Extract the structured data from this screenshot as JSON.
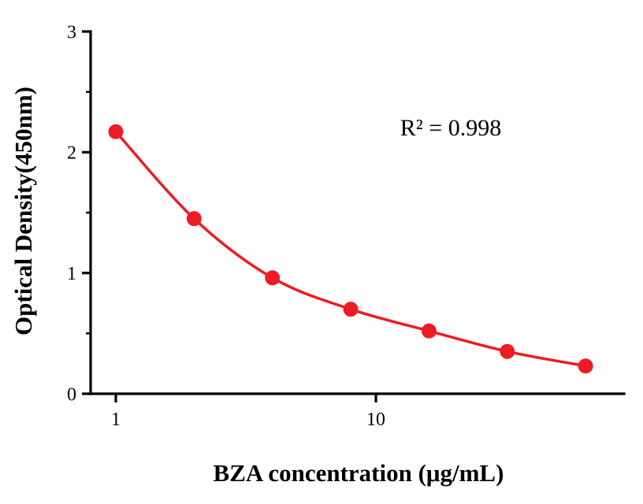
{
  "chart_data": {
    "type": "scatter",
    "x": [
      1,
      2,
      4,
      8,
      16,
      32,
      64
    ],
    "y": [
      2.17,
      1.45,
      0.96,
      0.7,
      0.52,
      0.35,
      0.23
    ],
    "x_scale": "log10",
    "xlim": [
      0.8,
      90
    ],
    "ylim": [
      0,
      3
    ],
    "x_major_ticks": [
      1,
      10
    ],
    "y_major_ticks": [
      0,
      1,
      2,
      3
    ],
    "y_minor_ticks": [
      0.5,
      1.5,
      2.5
    ],
    "title": "",
    "xlabel": "BZA concentration (μg/mL)",
    "ylabel": "Optical Density(450nm)",
    "annotation": "R² = 0.998",
    "grid": false,
    "legend": "none",
    "fit_type": "curve-through-points",
    "point_color": "#ed1c24",
    "line_color": "#ed1c24",
    "axis_color": "#000000"
  }
}
